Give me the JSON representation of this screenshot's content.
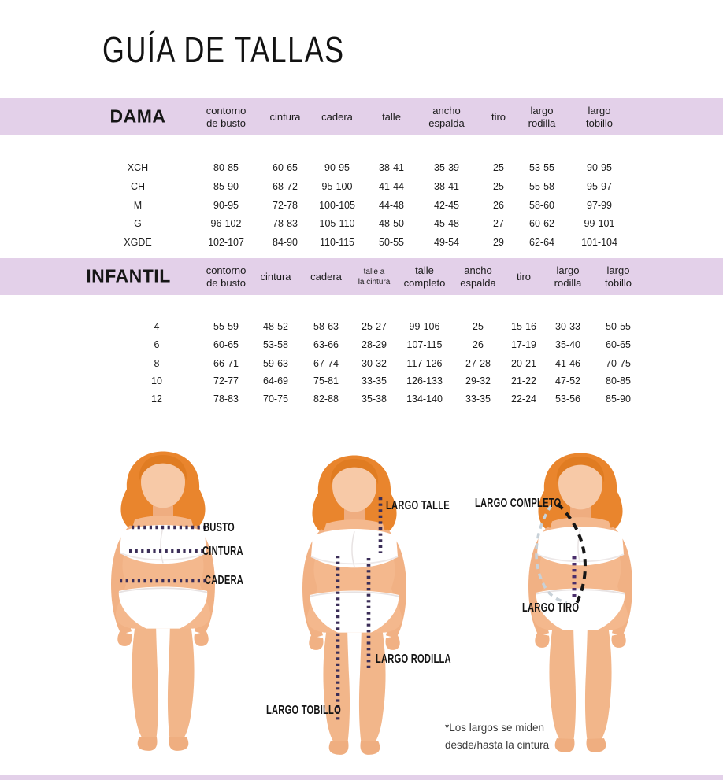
{
  "page_title": "GUÍA DE TALLAS",
  "tables": {
    "dama": {
      "title": "DAMA",
      "columns": [
        "contorno\nde busto",
        "cintura",
        "cadera",
        "talle",
        "ancho\nespalda",
        "tiro",
        "largo\nrodilla",
        "largo\ntobillo"
      ],
      "rows": [
        {
          "size": "XCH",
          "values": [
            "80-85",
            "60-65",
            "90-95",
            "38-41",
            "35-39",
            "25",
            "53-55",
            "90-95"
          ]
        },
        {
          "size": "CH",
          "values": [
            "85-90",
            "68-72",
            "95-100",
            "41-44",
            "38-41",
            "25",
            "55-58",
            "95-97"
          ]
        },
        {
          "size": "M",
          "values": [
            "90-95",
            "72-78",
            "100-105",
            "44-48",
            "42-45",
            "26",
            "58-60",
            "97-99"
          ]
        },
        {
          "size": "G",
          "values": [
            "96-102",
            "78-83",
            "105-110",
            "48-50",
            "45-48",
            "27",
            "60-62",
            "99-101"
          ]
        },
        {
          "size": "XGDE",
          "values": [
            "102-107",
            "84-90",
            "110-115",
            "50-55",
            "49-54",
            "29",
            "62-64",
            "101-104"
          ]
        }
      ]
    },
    "infantil": {
      "title": "INFANTIL",
      "columns": [
        "contorno\nde busto",
        "cintura",
        "cadera",
        "talle a\nla cintura",
        "talle\ncompleto",
        "ancho\nespalda",
        "tiro",
        "largo\nrodilla",
        "largo\ntobillo"
      ],
      "rows": [
        {
          "size": "4",
          "values": [
            "55-59",
            "48-52",
            "58-63",
            "25-27",
            "99-106",
            "25",
            "15-16",
            "30-33",
            "50-55"
          ]
        },
        {
          "size": "6",
          "values": [
            "60-65",
            "53-58",
            "63-66",
            "28-29",
            "107-115",
            "26",
            "17-19",
            "35-40",
            "60-65"
          ]
        },
        {
          "size": "8",
          "values": [
            "66-71",
            "59-63",
            "67-74",
            "30-32",
            "117-126",
            "27-28",
            "20-21",
            "41-46",
            "70-75"
          ]
        },
        {
          "size": "10",
          "values": [
            "72-77",
            "64-69",
            "75-81",
            "33-35",
            "126-133",
            "29-32",
            "21-22",
            "47-52",
            "80-85"
          ]
        },
        {
          "size": "12",
          "values": [
            "78-83",
            "70-75",
            "82-88",
            "35-38",
            "134-140",
            "33-35",
            "22-24",
            "53-56",
            "85-90"
          ]
        }
      ]
    }
  },
  "diagram": {
    "labels": {
      "busto": "BUSTO",
      "cintura": "CINTURA",
      "cadera": "CADERA",
      "largo_talle": "LARGO TALLE",
      "largo_rodilla": "LARGO RODILLA",
      "largo_tobillo": "LARGO TOBILLO",
      "largo_completo": "LARGO COMPLETO",
      "largo_tiro": "LARGO TIRO"
    },
    "note_line1": "*Los largos se miden",
    "note_line2": "desde/hasta la cintura"
  },
  "colors": {
    "band_lavender": "#e3d0e9",
    "dotted_line": "#3b2e58",
    "tiro_line": "#4b2e6b",
    "full_length_dash": "#161616",
    "side_arc_dash": "#c8d1d8",
    "hair_orange": "#e9852d",
    "skin": "#f4b88d"
  }
}
